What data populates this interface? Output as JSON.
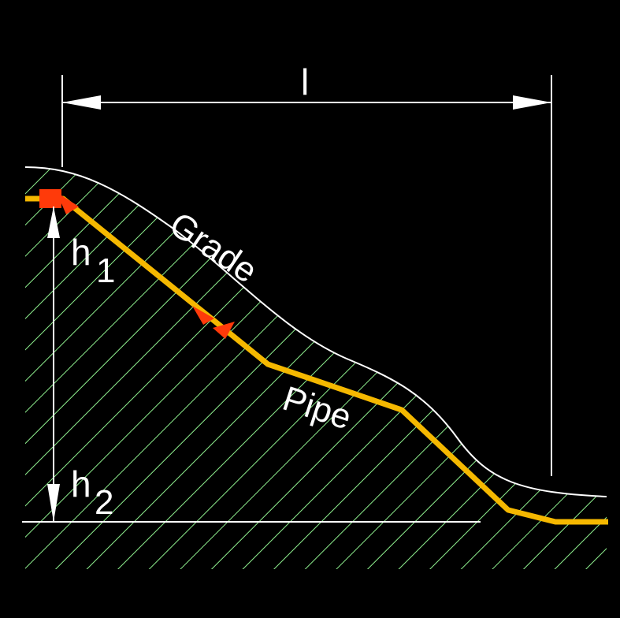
{
  "labels": {
    "length": "l",
    "h1_main": "h",
    "h1_sub": "1",
    "h2_main": "h",
    "h2_sub": "2",
    "grade": "Grade",
    "pipe": "Pipe"
  },
  "colors": {
    "background": "#000000",
    "lines": "#ffffff",
    "hatch": "#8ff08f",
    "pipe": "#f5b800",
    "marker": "#ff3a0a"
  }
}
